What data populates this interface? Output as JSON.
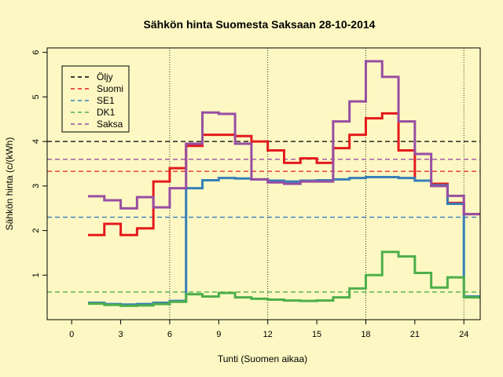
{
  "chart_data": {
    "type": "line",
    "step": true,
    "title": "Sähkön hinta Suomesta Saksaan 28-10-2014",
    "xlabel": "Tunti (Suomen aikaa)",
    "ylabel": "Sähkön hinta (c/(kWh)",
    "xlim": [
      -1.5,
      25
    ],
    "ylim": [
      0,
      6.1
    ],
    "x_ticks": [
      0,
      3,
      6,
      9,
      12,
      15,
      18,
      21,
      24
    ],
    "y_ticks": [
      1,
      2,
      3,
      4,
      5,
      6
    ],
    "vlines": [
      6,
      12,
      18,
      24
    ],
    "grid": false,
    "legend_position": "top-left",
    "series": [
      {
        "name": "Öljy",
        "color": "#000000",
        "style": "dashed",
        "hline": 4.0
      },
      {
        "name": "Suomi",
        "color": "#e41a1c",
        "style": "dashed",
        "hline": 3.33,
        "step_x": [
          1,
          2,
          3,
          4,
          5,
          6,
          7,
          8,
          9,
          10,
          11,
          12,
          13,
          14,
          15,
          16,
          17,
          18,
          19,
          20,
          21,
          22,
          23,
          24
        ],
        "step_values": [
          1.9,
          2.15,
          1.9,
          2.05,
          3.1,
          3.4,
          3.9,
          4.15,
          4.15,
          4.12,
          4.0,
          3.8,
          3.52,
          3.62,
          3.52,
          3.85,
          4.15,
          4.52,
          4.63,
          3.8,
          3.12,
          3.05,
          2.62,
          2.37
        ]
      },
      {
        "name": "SE1",
        "color": "#377eb8",
        "style": "dashed",
        "hline": 2.3,
        "step_x": [
          1,
          2,
          3,
          4,
          5,
          6,
          7,
          8,
          9,
          10,
          11,
          12,
          13,
          14,
          15,
          16,
          17,
          18,
          19,
          20,
          21,
          22,
          23,
          24
        ],
        "step_values": [
          0.38,
          0.35,
          0.34,
          0.35,
          0.38,
          0.42,
          2.95,
          3.13,
          3.18,
          3.17,
          3.15,
          3.12,
          3.1,
          3.12,
          3.13,
          3.15,
          3.18,
          3.2,
          3.2,
          3.18,
          3.12,
          3.02,
          2.6,
          0.52
        ]
      },
      {
        "name": "DK1",
        "color": "#4daf4a",
        "style": "dashed",
        "hline": 0.62,
        "step_x": [
          1,
          2,
          3,
          4,
          5,
          6,
          7,
          8,
          9,
          10,
          11,
          12,
          13,
          14,
          15,
          16,
          17,
          18,
          19,
          20,
          21,
          22,
          23,
          24
        ],
        "step_values": [
          0.36,
          0.33,
          0.31,
          0.32,
          0.35,
          0.4,
          0.57,
          0.52,
          0.6,
          0.5,
          0.47,
          0.45,
          0.43,
          0.42,
          0.43,
          0.5,
          0.7,
          1.0,
          1.52,
          1.42,
          1.05,
          0.72,
          0.95,
          0.5
        ]
      },
      {
        "name": "Saksa",
        "color": "#984ea3",
        "style": "dashed",
        "hline": 3.6,
        "step_x": [
          1,
          2,
          3,
          4,
          5,
          6,
          7,
          8,
          9,
          10,
          11,
          12,
          13,
          14,
          15,
          16,
          17,
          18,
          19,
          20,
          21,
          22,
          23,
          24
        ],
        "step_values": [
          2.77,
          2.68,
          2.5,
          2.75,
          2.52,
          2.95,
          3.95,
          4.65,
          4.62,
          3.95,
          3.15,
          3.08,
          3.05,
          3.1,
          3.1,
          4.45,
          4.9,
          5.8,
          5.45,
          4.45,
          3.72,
          3.0,
          2.78,
          2.37
        ]
      }
    ]
  }
}
